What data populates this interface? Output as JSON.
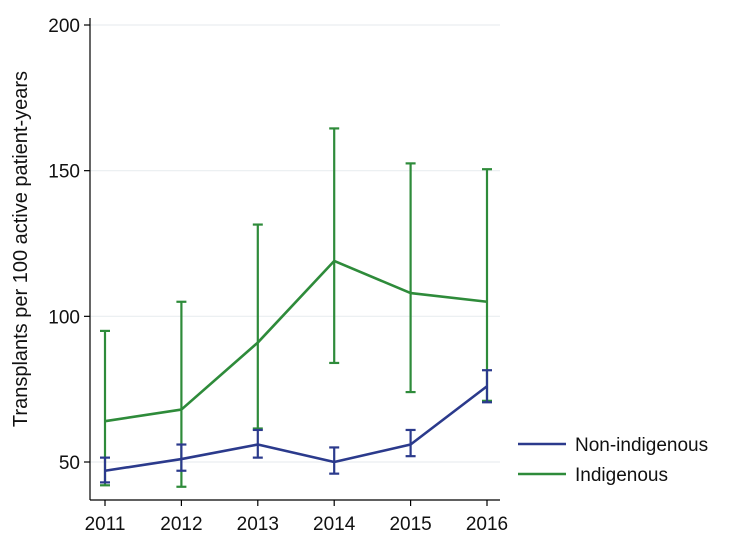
{
  "chart_data": {
    "type": "line",
    "title": "",
    "xlabel": "",
    "ylabel": "Transplants per 100 active patient-years",
    "x": [
      2011,
      2012,
      2013,
      2014,
      2015,
      2016
    ],
    "x_tick_labels": [
      "2011",
      "2012",
      "2013",
      "2014",
      "2015",
      "2016"
    ],
    "ylim": [
      40,
      200
    ],
    "y_ticks": [
      50,
      100,
      150,
      200
    ],
    "y_tick_labels": [
      "50",
      "100",
      "150",
      "200"
    ],
    "grid": true,
    "legend_position": "right",
    "series": [
      {
        "name": "Non-indigenous",
        "color": "#2b3a8c",
        "values": [
          47,
          51,
          56,
          50,
          56,
          76
        ],
        "ci_low": [
          43,
          47,
          51.5,
          46,
          52,
          70.5
        ],
        "ci_high": [
          51.5,
          56,
          61,
          55,
          61,
          81.5
        ]
      },
      {
        "name": "Indigenous",
        "color": "#2e8b3a",
        "values": [
          64,
          68,
          91,
          119,
          108,
          105
        ],
        "ci_low": [
          42,
          41.5,
          61.5,
          84,
          74,
          71
        ],
        "ci_high": [
          95,
          105,
          131.5,
          164.5,
          152.5,
          150.5
        ]
      }
    ]
  }
}
